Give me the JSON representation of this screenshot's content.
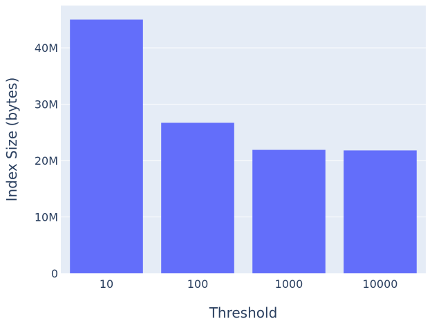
{
  "chart_data": {
    "type": "bar",
    "categories": [
      "10",
      "100",
      "1000",
      "10000"
    ],
    "values": [
      45000000,
      26700000,
      21900000,
      21800000
    ],
    "xlabel": "Threshold",
    "ylabel": "Index Size (bytes)",
    "ylim": [
      0,
      47500000
    ],
    "yticks": [
      0,
      10000000,
      20000000,
      30000000,
      40000000
    ],
    "ytick_labels": [
      "0",
      "10M",
      "20M",
      "30M",
      "40M"
    ],
    "grid": true,
    "legend": "none",
    "colors": {
      "bar": "#636efa",
      "plot_background": "#e5ecf6",
      "gridline": "#ffffff",
      "text": "#2a3f5f"
    }
  }
}
